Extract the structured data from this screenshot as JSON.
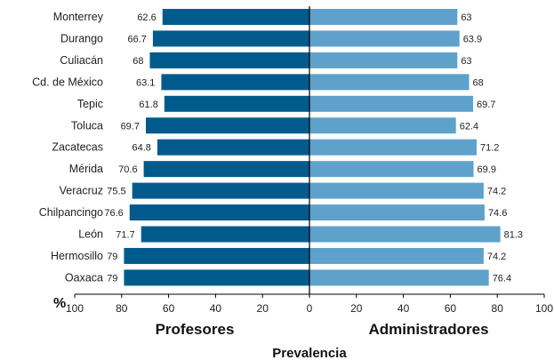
{
  "chart_data": {
    "type": "bar",
    "orientation": "horizontal-diverging",
    "categories": [
      "Monterrey",
      "Durango",
      "Culiacán",
      "Cd. de México",
      "Tepic",
      "Toluca",
      "Zacatecas",
      "Mérida",
      "Veracruz",
      "Chilpancingo",
      "León",
      "Hermosillo",
      "Oaxaca"
    ],
    "series": [
      {
        "name": "Profesores",
        "side": "left",
        "color": "#005b8c",
        "values": [
          62.6,
          66.7,
          68,
          63.1,
          61.8,
          69.7,
          64.8,
          70.6,
          75.5,
          76.6,
          71.7,
          79,
          79
        ]
      },
      {
        "name": "Administradores",
        "side": "right",
        "color": "#5ea2cc",
        "values": [
          63,
          63.9,
          63,
          68,
          69.7,
          62.4,
          71.2,
          69.9,
          74.2,
          74.6,
          81.3,
          74.2,
          76.4
        ]
      }
    ],
    "value_labels": {
      "left": [
        "62.6",
        "66.7",
        "68",
        "63.1",
        "61.8",
        "69.7",
        "64.8",
        "70.6",
        "75.5",
        "76.6",
        "71.7",
        "79",
        "79"
      ],
      "right": [
        "63",
        "63.9",
        "63",
        "68",
        "69.7",
        "62.4",
        "71.2",
        "69.9",
        "74.2",
        "74.6",
        "81.3",
        "74.2",
        "76.4"
      ]
    },
    "xlim": [
      0,
      100
    ],
    "left_ticks": [
      "100",
      "80",
      "60",
      "40",
      "20",
      "0"
    ],
    "right_ticks": [
      "20",
      "40",
      "60",
      "80",
      "100"
    ],
    "unit_label": "%",
    "xlabel": "Prevalencia",
    "ylabel": "",
    "grid": false
  }
}
